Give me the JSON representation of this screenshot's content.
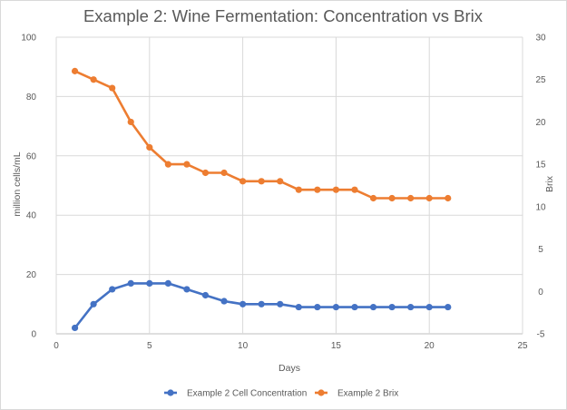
{
  "chart_data": {
    "type": "line",
    "title": "Example 2: Wine Fermentation: Concentration vs Brix",
    "xlabel": "Days",
    "ylabel": "million cells/mL",
    "y2label": "Brix",
    "xlim": [
      0,
      25
    ],
    "ylim": [
      0,
      100
    ],
    "y2lim": [
      -5,
      30
    ],
    "x_ticks": [
      "0",
      "5",
      "10",
      "15",
      "20",
      "25"
    ],
    "y_ticks": [
      "0",
      "20",
      "40",
      "60",
      "80",
      "100"
    ],
    "y2_ticks": [
      "-5",
      "0",
      "5",
      "10",
      "15",
      "20",
      "25",
      "30"
    ],
    "grid": true,
    "legend_position": "bottom",
    "series": [
      {
        "name": "Example 2 Cell Concentration",
        "axis": "left",
        "color": "#4472c4",
        "x": [
          1,
          2,
          3,
          4,
          5,
          6,
          7,
          8,
          9,
          10,
          11,
          12,
          13,
          14,
          15,
          16,
          17,
          18,
          19,
          20,
          21
        ],
        "y": [
          2,
          10,
          15,
          17,
          17,
          17,
          15,
          13,
          11,
          10,
          10,
          10,
          9,
          9,
          9,
          9,
          9,
          9,
          9,
          9,
          9
        ]
      },
      {
        "name": "Example 2 Brix",
        "axis": "right",
        "color": "#ed7d31",
        "x": [
          1,
          2,
          3,
          4,
          5,
          6,
          7,
          8,
          9,
          10,
          11,
          12,
          13,
          14,
          15,
          16,
          17,
          18,
          19,
          20,
          21
        ],
        "y": [
          26,
          25,
          24,
          20,
          17,
          15,
          15,
          14,
          14,
          13,
          13,
          13,
          12,
          12,
          12,
          12,
          11,
          11,
          11,
          11,
          11
        ]
      }
    ]
  }
}
